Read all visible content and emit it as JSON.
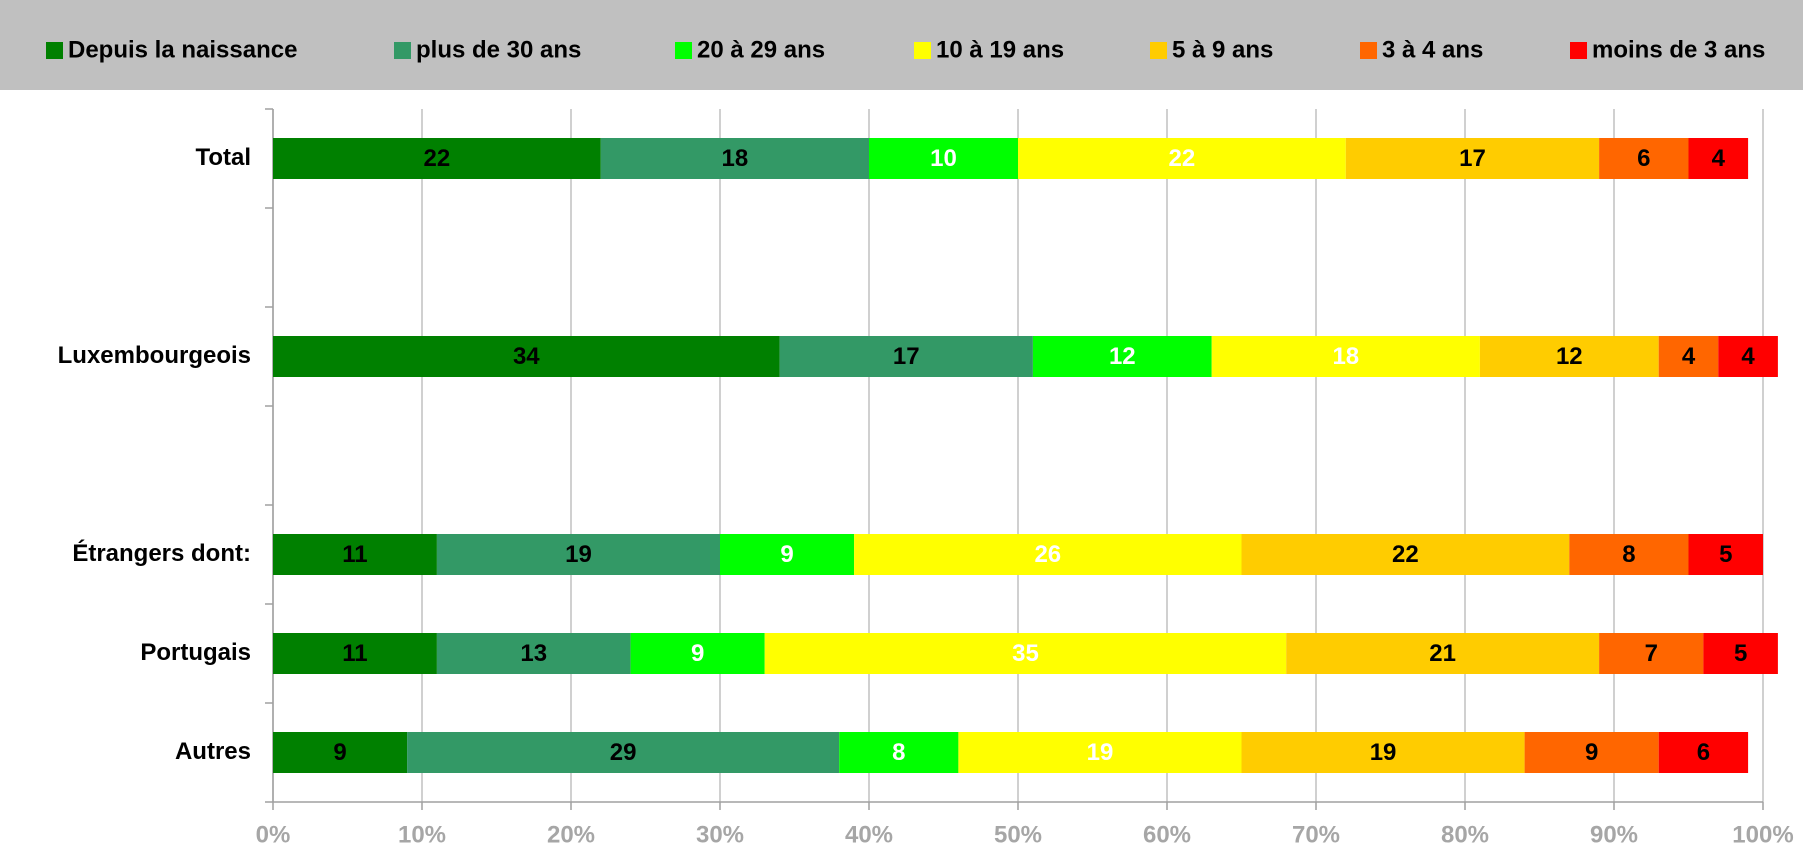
{
  "chart_data": {
    "type": "barh_stacked",
    "categories": [
      "Total",
      null,
      "Luxembourgeois",
      null,
      "Étrangers dont:",
      "Portugais",
      "Autres"
    ],
    "series": [
      {
        "name": "Depuis la naissance",
        "color": "#008000",
        "label_color": "#000000",
        "values": [
          22,
          null,
          34,
          null,
          11,
          11,
          9
        ]
      },
      {
        "name": "plus de 30 ans",
        "color": "#339966",
        "label_color": "#000000",
        "values": [
          18,
          null,
          17,
          null,
          19,
          13,
          29
        ]
      },
      {
        "name": "20 à 29 ans",
        "color": "#00ff00",
        "label_color": "#ffffff",
        "values": [
          10,
          null,
          12,
          null,
          9,
          9,
          8
        ]
      },
      {
        "name": "10 à 19 ans",
        "color": "#ffff00",
        "label_color": "#ffffff",
        "values": [
          22,
          null,
          18,
          null,
          26,
          35,
          19
        ]
      },
      {
        "name": "5 à 9 ans",
        "color": "#ffcc00",
        "label_color": "#000000",
        "values": [
          17,
          null,
          12,
          null,
          22,
          21,
          19
        ]
      },
      {
        "name": "3 à 4 ans",
        "color": "#ff6600",
        "label_color": "#000000",
        "values": [
          6,
          null,
          4,
          null,
          8,
          7,
          9
        ]
      },
      {
        "name": "moins de 3 ans",
        "color": "#ff0000",
        "label_color": "#000000",
        "values": [
          4,
          null,
          4,
          null,
          5,
          5,
          6
        ]
      }
    ],
    "xlim": [
      0,
      100
    ],
    "xticks": [
      {
        "value": 0,
        "label": "0%"
      },
      {
        "value": 10,
        "label": "10%"
      },
      {
        "value": 20,
        "label": "20%"
      },
      {
        "value": 30,
        "label": "30%"
      },
      {
        "value": 40,
        "label": "40%"
      },
      {
        "value": 50,
        "label": "50%"
      },
      {
        "value": 60,
        "label": "60%"
      },
      {
        "value": 70,
        "label": "70%"
      },
      {
        "value": 80,
        "label": "80%"
      },
      {
        "value": 90,
        "label": "90%"
      },
      {
        "value": 100,
        "label": "100%"
      }
    ],
    "grid": true,
    "legend": "top"
  }
}
